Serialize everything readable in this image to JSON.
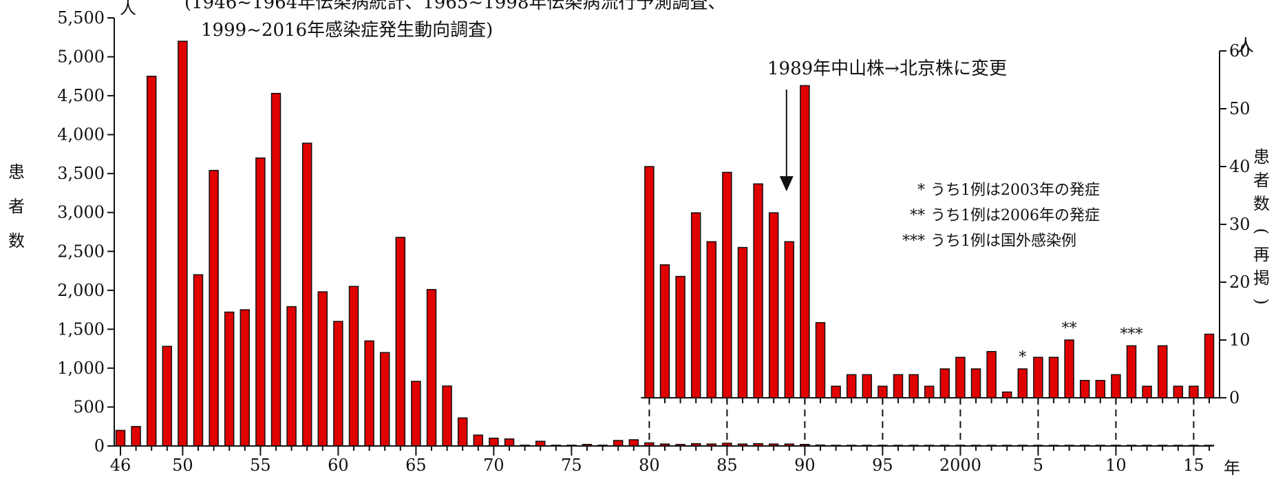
{
  "chart_data": [
    {
      "type": "bar",
      "id": "main",
      "subtitle_lines": [
        "(1946~1964年伝染病統計、1965~1998年伝染病流行予測調査、",
        "1999~2016年感染症発生動向調査)"
      ],
      "ylabel": "患者数",
      "yunit": "人",
      "xunit": "年",
      "ylim": [
        0,
        5500
      ],
      "y_ticks": [
        0,
        500,
        1000,
        1500,
        2000,
        2500,
        3000,
        3500,
        4000,
        4500,
        5000,
        5500
      ],
      "y_tick_labels": [
        "0",
        "500",
        "1,000",
        "1,500",
        "2,000",
        "2,500",
        "3,000",
        "3,500",
        "4,000",
        "4,500",
        "5,000",
        "5,500"
      ],
      "x_ticks": [
        1946,
        1950,
        1955,
        1960,
        1965,
        1970,
        1975,
        1980,
        1985,
        1990,
        1995,
        2000,
        2005,
        2010,
        2015
      ],
      "x_tick_labels": [
        "46",
        "50",
        "55",
        "60",
        "65",
        "70",
        "75",
        "80",
        "85",
        "90",
        "95",
        "2000",
        "5",
        "10",
        "15"
      ],
      "x": [
        1946,
        1947,
        1948,
        1949,
        1950,
        1951,
        1952,
        1953,
        1954,
        1955,
        1956,
        1957,
        1958,
        1959,
        1960,
        1961,
        1962,
        1963,
        1964,
        1965,
        1966,
        1967,
        1968,
        1969,
        1970,
        1971,
        1972,
        1973,
        1974,
        1975,
        1976,
        1977,
        1978,
        1979,
        1980,
        1981,
        1982,
        1983,
        1984,
        1985,
        1986,
        1987,
        1988,
        1989,
        1990,
        1991,
        1992,
        1993,
        1994,
        1995,
        1996,
        1997,
        1998,
        1999,
        2000,
        2001,
        2002,
        2003,
        2004,
        2005,
        2006,
        2007,
        2008,
        2009,
        2010,
        2011,
        2012,
        2013,
        2014,
        2015,
        2016
      ],
      "values": [
        200,
        250,
        4750,
        1280,
        5200,
        2200,
        3540,
        1720,
        1750,
        3700,
        4530,
        1790,
        3890,
        1980,
        1600,
        2050,
        1350,
        1200,
        2680,
        830,
        2010,
        770,
        360,
        140,
        100,
        90,
        10,
        60,
        10,
        10,
        20,
        10,
        70,
        80,
        40,
        25,
        20,
        30,
        25,
        35,
        25,
        30,
        25,
        25,
        20,
        12,
        4,
        4,
        4,
        4,
        4,
        4,
        4,
        4,
        4,
        4,
        4,
        4,
        4,
        4,
        4,
        4,
        4,
        4,
        4,
        4,
        4,
        4,
        4,
        4,
        4
      ],
      "bar_color": "#e00000",
      "annotation": "1989年中山株→北京株に変更",
      "annotation_x": 1989
    },
    {
      "type": "bar",
      "id": "inset",
      "ylabel": "患者数(再掲)",
      "yunit": "人",
      "ylim": [
        0,
        60
      ],
      "y_ticks": [
        0,
        10,
        20,
        30,
        40,
        50,
        60
      ],
      "y_tick_labels": [
        "0",
        "10",
        "20",
        "30",
        "40",
        "50",
        "60"
      ],
      "x": [
        1980,
        1981,
        1982,
        1983,
        1984,
        1985,
        1986,
        1987,
        1988,
        1989,
        1990,
        1991,
        1992,
        1993,
        1994,
        1995,
        1996,
        1997,
        1998,
        1999,
        2000,
        2001,
        2002,
        2003,
        2004,
        2005,
        2006,
        2007,
        2008,
        2009,
        2010,
        2011,
        2012,
        2013,
        2014,
        2015,
        2016
      ],
      "values": [
        40,
        23,
        21,
        32,
        27,
        39,
        26,
        37,
        32,
        27,
        54,
        13,
        2,
        4,
        4,
        2,
        4,
        4,
        2,
        5,
        7,
        5,
        8,
        1,
        5,
        7,
        7,
        10,
        3,
        3,
        4,
        9,
        2,
        9,
        2,
        2,
        11
      ],
      "marks": [
        {
          "x": 2004,
          "label": "*"
        },
        {
          "x": 2007,
          "label": "**"
        },
        {
          "x": 2011,
          "label": "***"
        }
      ],
      "bar_color": "#e00000",
      "legend": [
        {
          "mark": "*",
          "text": "うち1例は2003年の発症"
        },
        {
          "mark": "**",
          "text": "うち1例は2006年の発症"
        },
        {
          "mark": "***",
          "text": "うち1例は国外感染例"
        }
      ]
    }
  ]
}
